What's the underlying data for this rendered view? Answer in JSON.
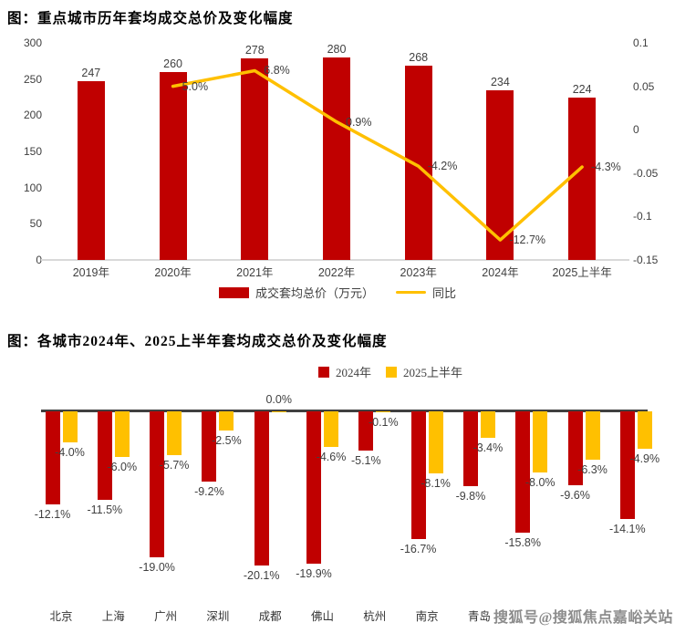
{
  "colors": {
    "bar_red": "#C00000",
    "line_yellow": "#FFC000",
    "axis_text": "#404040",
    "title_text": "#000000",
    "baseline_gray": "#d9d9d9",
    "zero_axis_dark": "#404040",
    "watermark_gray": "#8c8c8c"
  },
  "watermark": {
    "text": "搜狐号@搜狐焦点嘉峪关站"
  },
  "chart_data": [
    {
      "type": "bar",
      "title": "图：重点城市历年套均成交总价及变化幅度",
      "categories": [
        "2019年",
        "2020年",
        "2021年",
        "2022年",
        "2023年",
        "2024年",
        "2025上半年"
      ],
      "series": [
        {
          "name": "成交套均总价（万元）",
          "render": "bar",
          "axis": "left",
          "color": "#C00000",
          "values": [
            247,
            260,
            278,
            280,
            268,
            234,
            224
          ]
        },
        {
          "name": "同比",
          "render": "line",
          "axis": "right",
          "color": "#FFC000",
          "values": [
            null,
            0.05,
            0.068,
            0.009,
            -0.042,
            -0.127,
            -0.043
          ],
          "point_labels": [
            null,
            "5.0%",
            "6.8%",
            "0.9%",
            "-4.2%",
            "-12.7%",
            "-4.3%"
          ]
        }
      ],
      "left_axis": {
        "min": 0,
        "max": 300,
        "ticks": [
          300,
          250,
          200,
          150,
          100,
          50,
          0
        ]
      },
      "right_axis": {
        "min": -0.15,
        "max": 0.1,
        "ticks": [
          "0.1",
          "0.05",
          "0",
          "-0.05",
          "-0.1",
          "-0.15"
        ],
        "tick_values": [
          0.1,
          0.05,
          0,
          -0.05,
          -0.1,
          -0.15
        ]
      },
      "legend": [
        "成交套均总价（万元）",
        "同比"
      ],
      "legend_position": "bottom-center",
      "grid": false
    },
    {
      "type": "bar",
      "title": "图：各城市2024年、2025上半年套均成交总价及变化幅度",
      "categories": [
        "北京",
        "上海",
        "广州",
        "深圳",
        "成都",
        "佛山",
        "杭州",
        "南京",
        "青岛"
      ],
      "num_groups": 12,
      "note": "last three city names hidden behind watermark",
      "series": [
        {
          "name": "2024年",
          "color": "#C00000",
          "values": [
            -12.1,
            -11.5,
            -19.0,
            -9.2,
            -20.1,
            -19.9,
            -5.1,
            -16.7,
            -9.8,
            -15.8,
            -9.6,
            -14.1
          ],
          "labels": [
            "-12.1%",
            "-11.5%",
            "-19.0%",
            "-9.2%",
            "-20.1%",
            "-19.9%",
            "-5.1%",
            "-16.7%",
            "-9.8%",
            "-15.8%",
            "-9.6%",
            "-14.1%"
          ]
        },
        {
          "name": "2025上半年",
          "color": "#FFC000",
          "values": [
            -4.0,
            -6.0,
            -5.7,
            -2.5,
            0.0,
            -4.6,
            -0.1,
            -8.1,
            -3.4,
            -8.0,
            -6.3,
            -4.9
          ],
          "labels": [
            "-4.0%",
            "-6.0%",
            "-5.7%",
            "-2.5%",
            "0.0%",
            "-4.6%",
            "-0.1%",
            "-8.1%",
            "-3.4%",
            "-8.0%",
            "-6.3%",
            "-4.9%"
          ]
        }
      ],
      "legend": [
        "2024年",
        "2025上半年"
      ],
      "legend_position": "top-center",
      "grid": false,
      "ylabel": "",
      "xlabel": ""
    }
  ]
}
